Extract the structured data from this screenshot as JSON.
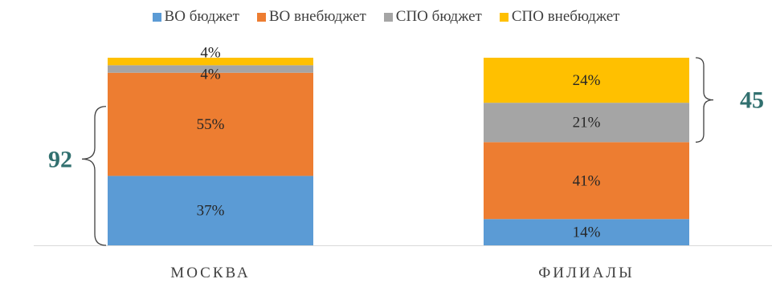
{
  "chart_data": {
    "type": "bar",
    "stacked": true,
    "percent": true,
    "categories": [
      "МОСКВА",
      "ФИЛИАЛЫ"
    ],
    "series": [
      {
        "name": "ВО бюджет",
        "color": "#5B9BD5",
        "values": [
          37,
          14
        ],
        "labels": [
          "37%",
          "14%"
        ]
      },
      {
        "name": "ВО внебюджет",
        "color": "#ED7D31",
        "values": [
          55,
          41
        ],
        "labels": [
          "55%",
          "41%"
        ]
      },
      {
        "name": "СПО бюджет",
        "color": "#A5A5A5",
        "values": [
          4,
          21
        ],
        "labels": [
          "4%",
          "21%"
        ]
      },
      {
        "name": "СПО внебюджет",
        "color": "#FFC000",
        "values": [
          4,
          24
        ],
        "labels": [
          "4%",
          "24%"
        ]
      }
    ],
    "legend_position": "top",
    "annotations": [
      {
        "text": "92",
        "category": "МОСКВА",
        "covers_series": [
          "ВО бюджет",
          "ВО внебюджет"
        ],
        "side": "left",
        "color": "#31706F"
      },
      {
        "text": "45",
        "category": "ФИЛИАЛЫ",
        "covers_series": [
          "СПО бюджет",
          "СПО внебюджет"
        ],
        "side": "right",
        "color": "#31706F"
      }
    ]
  }
}
